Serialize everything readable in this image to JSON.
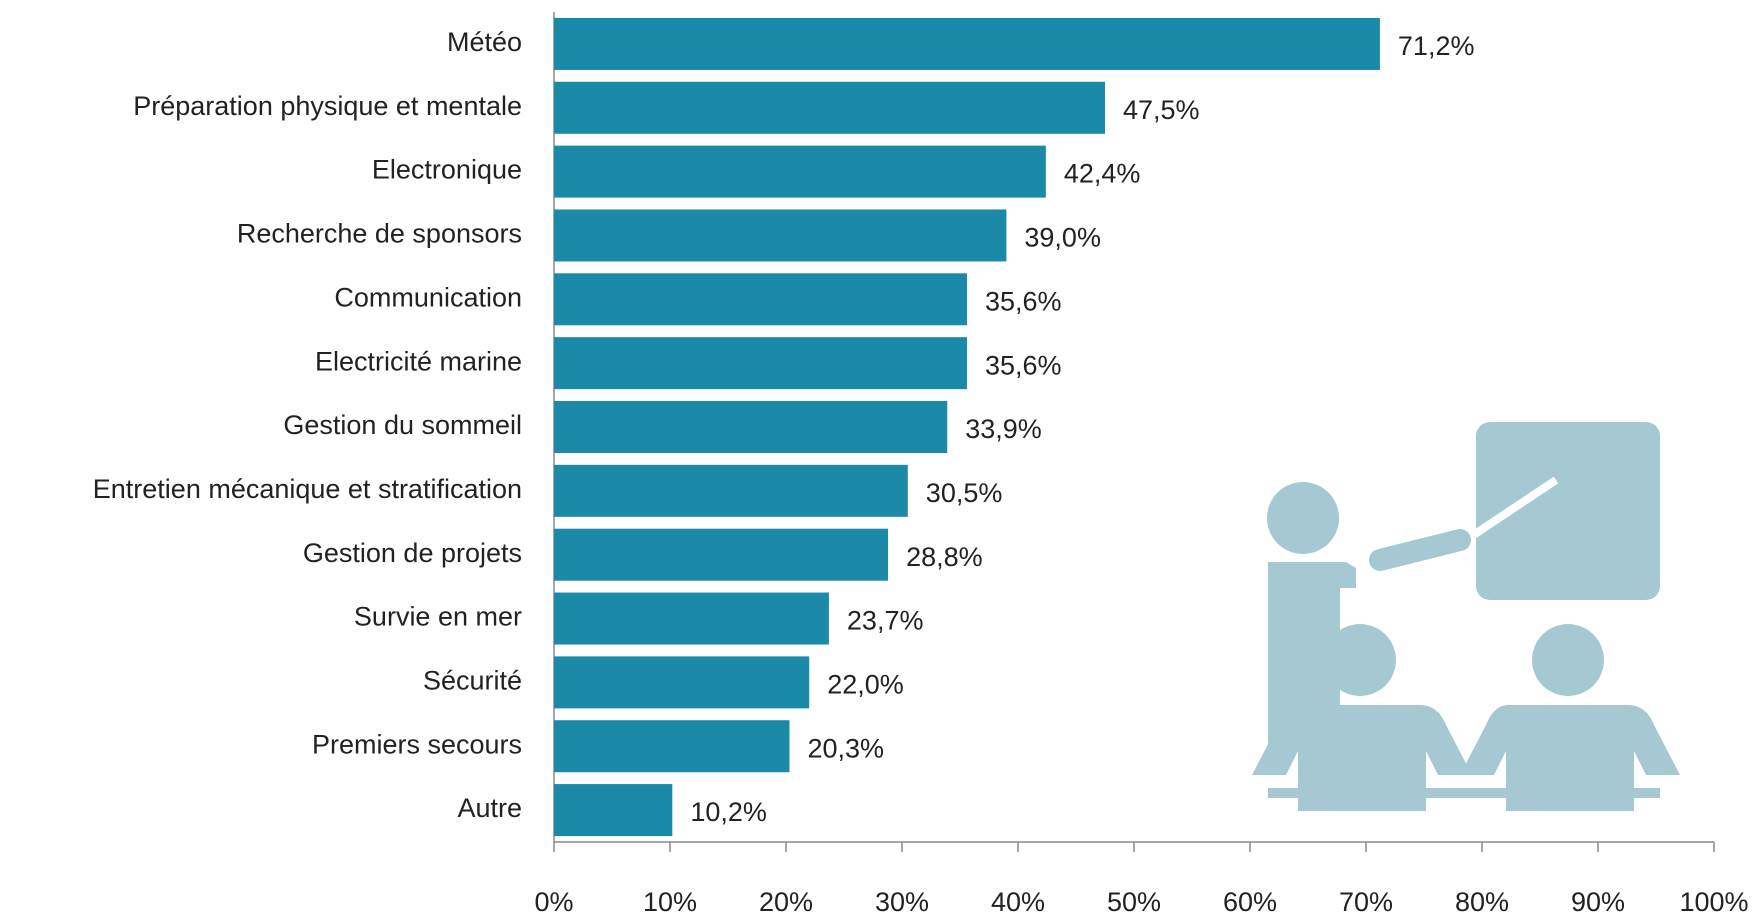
{
  "chart_data": {
    "type": "hbar",
    "categories": [
      "Météo",
      "Préparation physique et mentale",
      "Electronique",
      "Recherche de sponsors",
      "Communication",
      "Electricité marine",
      "Gestion du sommeil",
      "Entretien mécanique et stratification",
      "Gestion de projets",
      "Survie en mer",
      "Sécurité",
      "Premiers secours",
      "Autre"
    ],
    "values": [
      71.2,
      47.5,
      42.4,
      39.0,
      35.6,
      35.6,
      33.9,
      30.5,
      28.8,
      23.7,
      22.0,
      20.3,
      10.2
    ],
    "value_labels": [
      "71,2%",
      "47,5%",
      "42,4%",
      "39,0%",
      "35,6%",
      "35,6%",
      "33,9%",
      "30,5%",
      "28,8%",
      "23,7%",
      "22,0%",
      "20,3%",
      "10,2%"
    ],
    "color": "#1a8aa8",
    "xlim": [
      0,
      100
    ],
    "xticks": [
      {
        "value": 0,
        "label": "0%"
      },
      {
        "value": 10,
        "label": "10%"
      },
      {
        "value": 20,
        "label": "20%"
      },
      {
        "value": 30,
        "label": "30%"
      },
      {
        "value": 40,
        "label": "40%"
      },
      {
        "value": 50,
        "label": "50%"
      },
      {
        "value": 60,
        "label": "60%"
      },
      {
        "value": 70,
        "label": "70%"
      },
      {
        "value": 80,
        "label": "80%"
      },
      {
        "value": 90,
        "label": "90%"
      },
      {
        "value": 100,
        "label": "100%"
      }
    ]
  }
}
